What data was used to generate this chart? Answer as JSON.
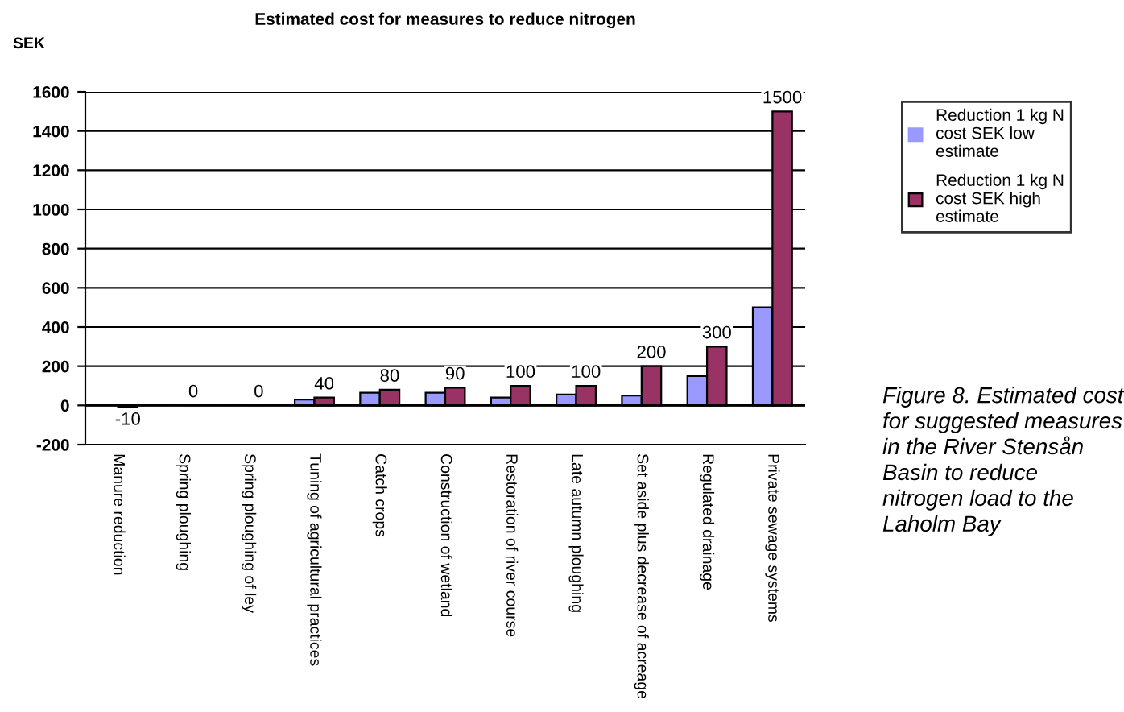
{
  "chart_data": {
    "type": "bar",
    "title": "Estimated cost for measures to reduce nitrogen",
    "ylabel": "SEK",
    "categories": [
      "Manure reduction",
      "Spring ploughing",
      "Spring ploughing of ley",
      "Tuning of agricultural practices",
      "Catch crops",
      "Construction of wetland",
      "Restoration of river course",
      "Late autumn ploughing",
      "Set aside plus decrease of acreage",
      "Regulated drainage",
      "Private sewage systems"
    ],
    "series": [
      {
        "name": "Reduction 1 kg N cost SEK low estimate",
        "color": "#9999ff",
        "values": [
          null,
          0,
          0,
          30,
          65,
          65,
          40,
          55,
          50,
          150,
          500
        ]
      },
      {
        "name": "Reduction 1 kg N cost SEK high estimate",
        "color": "#993366",
        "values": [
          -10,
          0,
          0,
          40,
          80,
          90,
          100,
          100,
          200,
          300,
          1500
        ],
        "value_labels": [
          "-10",
          "0",
          "0",
          "40",
          "80",
          "90",
          "100",
          "100",
          "200",
          "300",
          "1500"
        ]
      }
    ],
    "ylim": [
      -200,
      1600
    ],
    "yticks": [
      -200,
      0,
      200,
      400,
      600,
      800,
      1000,
      1200,
      1400,
      1600
    ],
    "grid": "y",
    "legend": "right",
    "annotations": [
      "Figure 8. Estimated cost for suggested measures in the River Stensån Basin to reduce nitrogen load to the Laholm Bay"
    ]
  }
}
